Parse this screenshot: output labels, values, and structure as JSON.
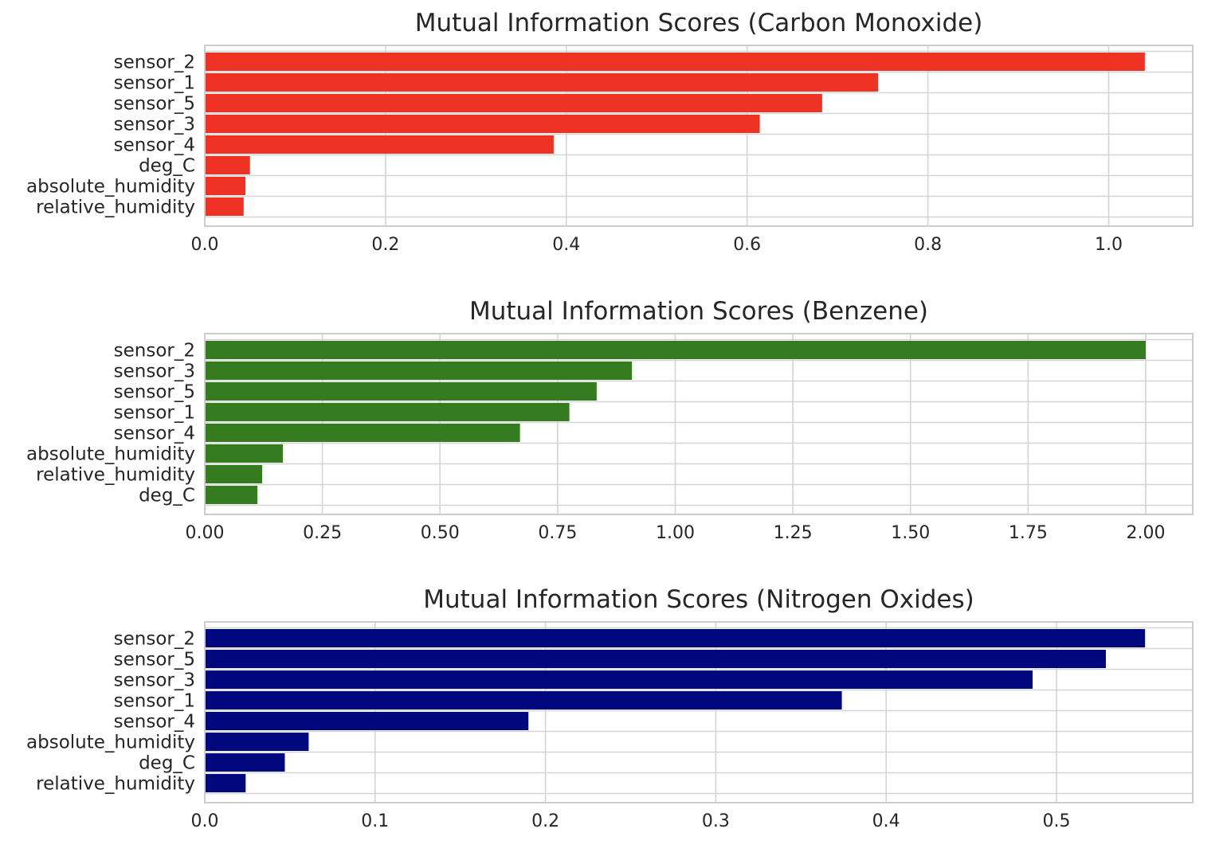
{
  "chart_data": [
    {
      "type": "bar",
      "orientation": "horizontal",
      "title": "Mutual Information Scores (Carbon Monoxide)",
      "categories": [
        "sensor_2",
        "sensor_1",
        "sensor_5",
        "sensor_3",
        "sensor_4",
        "deg_C",
        "absolute_humidity",
        "relative_humidity"
      ],
      "values": [
        1.04,
        0.745,
        0.683,
        0.614,
        0.386,
        0.05,
        0.045,
        0.043
      ],
      "xlim": [
        0,
        1.093
      ],
      "xticks": [
        "0.0",
        "0.2",
        "0.4",
        "0.6",
        "0.8",
        "1.0"
      ],
      "color": "#EE3224",
      "grid": true
    },
    {
      "type": "bar",
      "orientation": "horizontal",
      "title": "Mutual Information Scores (Benzene)",
      "categories": [
        "sensor_2",
        "sensor_3",
        "sensor_5",
        "sensor_1",
        "sensor_4",
        "absolute_humidity",
        "relative_humidity",
        "deg_C"
      ],
      "values": [
        2.0,
        0.908,
        0.833,
        0.775,
        0.67,
        0.166,
        0.122,
        0.112
      ],
      "xlim": [
        0,
        2.1
      ],
      "xticks": [
        "0.00",
        "0.25",
        "0.50",
        "0.75",
        "1.00",
        "1.25",
        "1.50",
        "1.75",
        "2.00"
      ],
      "color": "#357C20",
      "grid": true
    },
    {
      "type": "bar",
      "orientation": "horizontal",
      "title": "Mutual Information Scores (Nitrogen Oxides)",
      "categories": [
        "sensor_2",
        "sensor_5",
        "sensor_3",
        "sensor_1",
        "sensor_4",
        "absolute_humidity",
        "deg_C",
        "relative_humidity"
      ],
      "values": [
        0.552,
        0.529,
        0.486,
        0.374,
        0.19,
        0.061,
        0.047,
        0.024
      ],
      "xlim": [
        0,
        0.58
      ],
      "xticks": [
        "0.0",
        "0.1",
        "0.2",
        "0.3",
        "0.4",
        "0.5"
      ],
      "color": "#00087E",
      "grid": true
    }
  ]
}
